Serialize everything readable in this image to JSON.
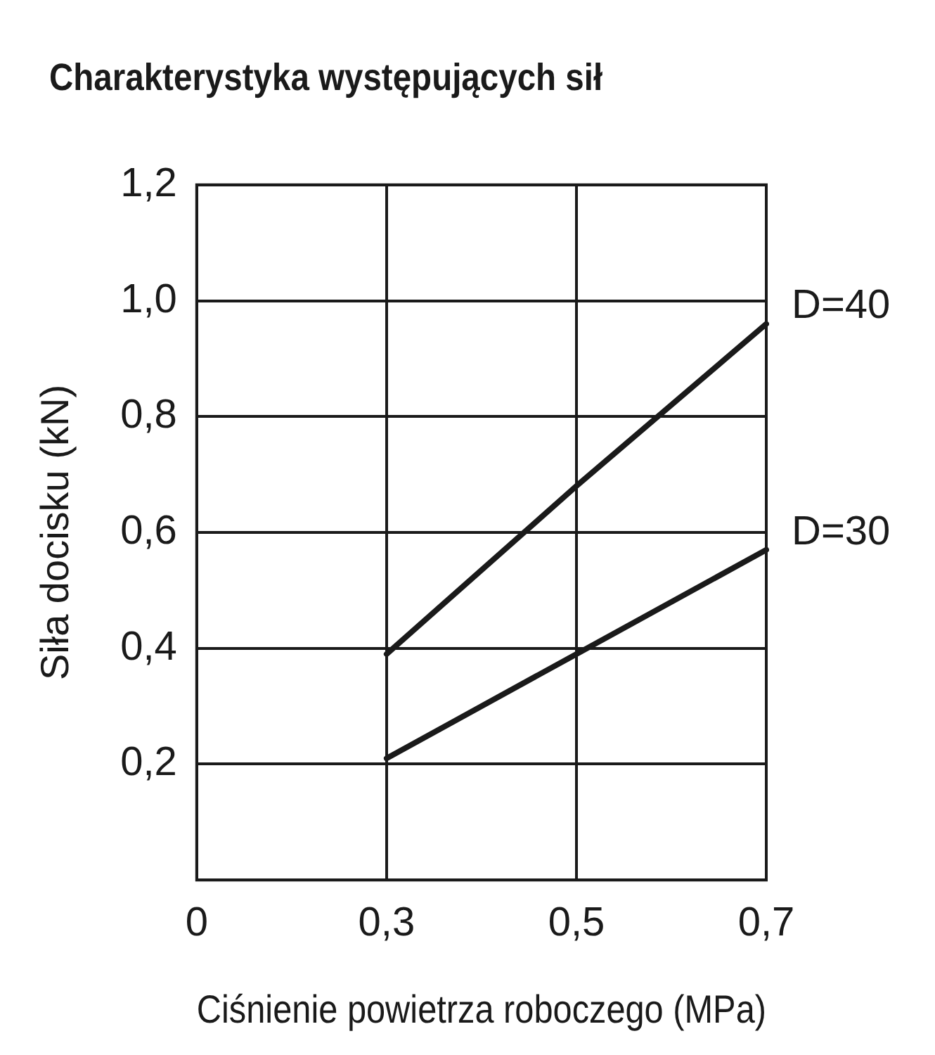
{
  "chart_data": {
    "type": "line",
    "title": "Charakterystyka występujących sił",
    "xlabel": "Ciśnienie powietrza roboczego (MPa)",
    "ylabel": "Siła docisku (kN)",
    "categories": [
      "0",
      "0,3",
      "0,5",
      "0,7"
    ],
    "series": [
      {
        "name": "D=40",
        "color": "#1a1a1a",
        "values": [
          null,
          0.39,
          0.68,
          0.96
        ]
      },
      {
        "name": "D=30",
        "color": "#1a1a1a",
        "values": [
          null,
          0.21,
          0.39,
          0.57
        ]
      }
    ],
    "ylim": [
      0,
      1.2
    ],
    "yticks": [
      {
        "value": 0,
        "label": null
      },
      {
        "value": 0.2,
        "label": "0,2"
      },
      {
        "value": 0.4,
        "label": "0,4"
      },
      {
        "value": 0.6,
        "label": "0,6"
      },
      {
        "value": 0.8,
        "label": "0,8"
      },
      {
        "value": 1.0,
        "label": "1,0"
      },
      {
        "value": 1.2,
        "label": "1,2"
      }
    ],
    "grid": true,
    "legend": false,
    "marker": "none",
    "line_style": "solid"
  }
}
